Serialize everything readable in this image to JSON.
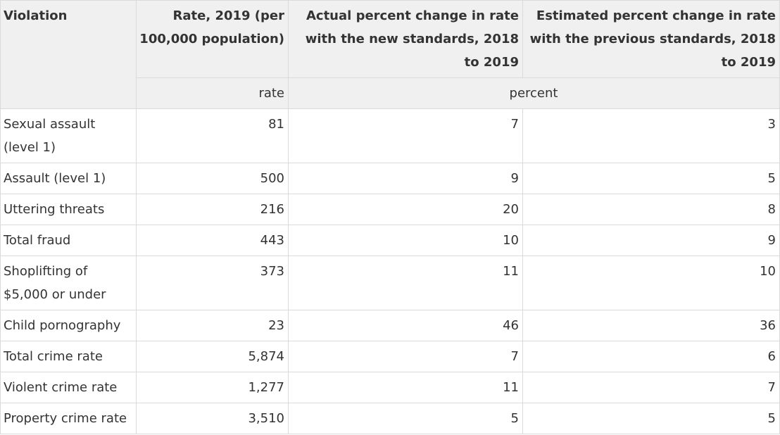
{
  "table": {
    "headers": {
      "violation": "Violation",
      "rate": "Rate, 2019 (per 100,000 population)",
      "actual": "Actual percent change in rate with the new standards, 2018 to 2019",
      "estimated": "Estimated percent change in rate with the previous standards, 2018 to 2019"
    },
    "units": {
      "rate": "rate",
      "percent": "percent"
    },
    "rows": [
      {
        "violation": "Sexual assault (level 1)",
        "rate": "81",
        "actual": "7",
        "estimated": "3"
      },
      {
        "violation": "Assault (level 1)",
        "rate": "500",
        "actual": "9",
        "estimated": "5"
      },
      {
        "violation": "Uttering threats",
        "rate": "216",
        "actual": "20",
        "estimated": "8"
      },
      {
        "violation": "Total fraud",
        "rate": "443",
        "actual": "10",
        "estimated": "9"
      },
      {
        "violation": "Shoplifting of $5,000 or under",
        "rate": "373",
        "actual": "11",
        "estimated": "10"
      },
      {
        "violation": "Child pornography",
        "rate": "23",
        "actual": "46",
        "estimated": "36"
      },
      {
        "violation": "Total crime rate",
        "rate": "5,874",
        "actual": "7",
        "estimated": "6"
      },
      {
        "violation": "Violent crime rate",
        "rate": "1,277",
        "actual": "11",
        "estimated": "7"
      },
      {
        "violation": "Property crime rate",
        "rate": "3,510",
        "actual": "5",
        "estimated": "5"
      }
    ]
  }
}
